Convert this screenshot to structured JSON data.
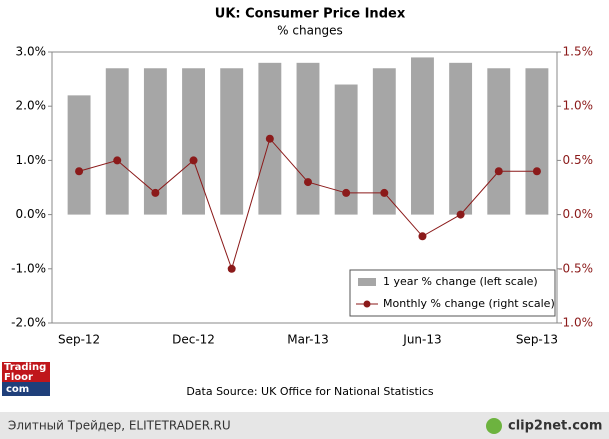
{
  "chart_data": {
    "type": "bar",
    "title": "UK: Consumer Price Index",
    "subtitle": "% changes",
    "categories": [
      "Sep-12",
      null,
      null,
      "Dec-12",
      null,
      null,
      "Mar-13",
      null,
      null,
      "Jun-13",
      null,
      null,
      "Sep-13"
    ],
    "series": [
      {
        "name": "1 year % change (left scale)",
        "type": "bar",
        "color": "#a6a6a6",
        "values": [
          2.2,
          2.7,
          2.7,
          2.7,
          2.7,
          2.8,
          2.8,
          2.4,
          2.7,
          2.9,
          2.8,
          2.7,
          2.7
        ]
      },
      {
        "name": "Monthly % change (right scale)",
        "type": "line",
        "axis": "y2",
        "color": "#8b1a1a",
        "values": [
          0.4,
          0.5,
          0.2,
          0.5,
          -0.5,
          0.7,
          0.3,
          0.2,
          0.2,
          -0.2,
          0.0,
          0.4,
          0.4
        ]
      }
    ],
    "ylim": [
      -2,
      3
    ],
    "yticks": [
      {
        "value": 3,
        "label": "3.0%"
      },
      {
        "value": 2,
        "label": "2.0%"
      },
      {
        "value": 1,
        "label": "1.0%"
      },
      {
        "value": 0,
        "label": "0.0%"
      },
      {
        "value": -1,
        "label": "-1.0%"
      },
      {
        "value": -2,
        "label": "-2.0%"
      }
    ],
    "y2lim": [
      -1,
      1.5
    ],
    "y2ticks": [
      {
        "value": 1.5,
        "label": "1.5%"
      },
      {
        "value": 1,
        "label": "1.0%"
      },
      {
        "value": 0.5,
        "label": "0.5%"
      },
      {
        "value": 0,
        "label": "0.0%"
      },
      {
        "value": -0.5,
        "label": "-0.5%"
      },
      {
        "value": -1,
        "label": "-1.0%"
      }
    ],
    "legend": "lower right",
    "source": "Data Source: UK Office for National Statistics"
  },
  "logo": {
    "line1": "Trading",
    "line2": "Floor",
    "line3": "com"
  },
  "footer": {
    "left": "Элитный Трейдер, ELITETRADER.RU",
    "right": "clip2net.com"
  }
}
